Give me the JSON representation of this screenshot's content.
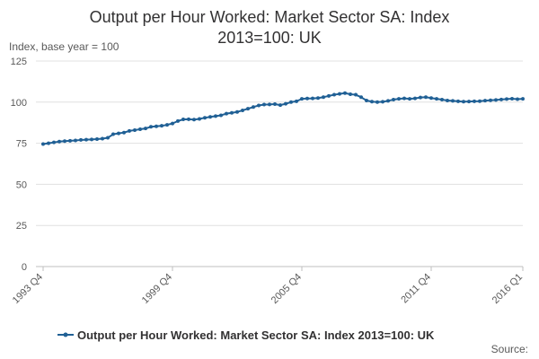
{
  "chart_data": {
    "type": "line",
    "title_line1": "Output per Hour Worked: Market Sector SA: Index",
    "title_line2": "2013=100: UK",
    "ylabel": "Index, base year = 100",
    "ylim": [
      0,
      125
    ],
    "yticks": [
      0,
      25,
      50,
      75,
      100,
      125
    ],
    "grid": true,
    "x_tick_labels": [
      {
        "index": 0,
        "label": "1993 Q4"
      },
      {
        "index": 24,
        "label": "1999 Q4"
      },
      {
        "index": 48,
        "label": "2005 Q4"
      },
      {
        "index": 72,
        "label": "2011 Q4"
      },
      {
        "index": 89,
        "label": "2016 Q1"
      }
    ],
    "x_start": "1993 Q4",
    "x_end": "2016 Q1",
    "series": [
      {
        "name": "Output per Hour Worked: Market Sector SA: Index 2013=100: UK",
        "color": "#206095",
        "values": [
          74.5,
          75.0,
          75.5,
          76.0,
          76.3,
          76.5,
          76.7,
          77.0,
          77.2,
          77.3,
          77.5,
          77.8,
          78.3,
          80.5,
          81.0,
          81.5,
          82.5,
          83.0,
          83.5,
          84.0,
          85.0,
          85.3,
          85.6,
          86.2,
          87.0,
          88.5,
          89.5,
          89.6,
          89.4,
          89.8,
          90.5,
          91.0,
          91.5,
          92.0,
          93.0,
          93.5,
          94.0,
          95.0,
          96.0,
          97.0,
          98.0,
          98.5,
          98.6,
          98.8,
          98.2,
          99.0,
          100.0,
          100.5,
          102.0,
          102.2,
          102.3,
          102.5,
          103.0,
          103.8,
          104.5,
          105.0,
          105.5,
          104.8,
          104.5,
          103.0,
          101.0,
          100.3,
          100.0,
          100.2,
          100.8,
          101.5,
          102.0,
          102.3,
          102.0,
          102.3,
          102.8,
          103.0,
          102.5,
          102.0,
          101.5,
          101.0,
          100.8,
          100.5,
          100.3,
          100.4,
          100.5,
          100.6,
          100.9,
          101.1,
          101.3,
          101.6,
          101.9,
          102.1,
          101.8,
          102.0
        ]
      }
    ]
  },
  "source_label": "Source:"
}
